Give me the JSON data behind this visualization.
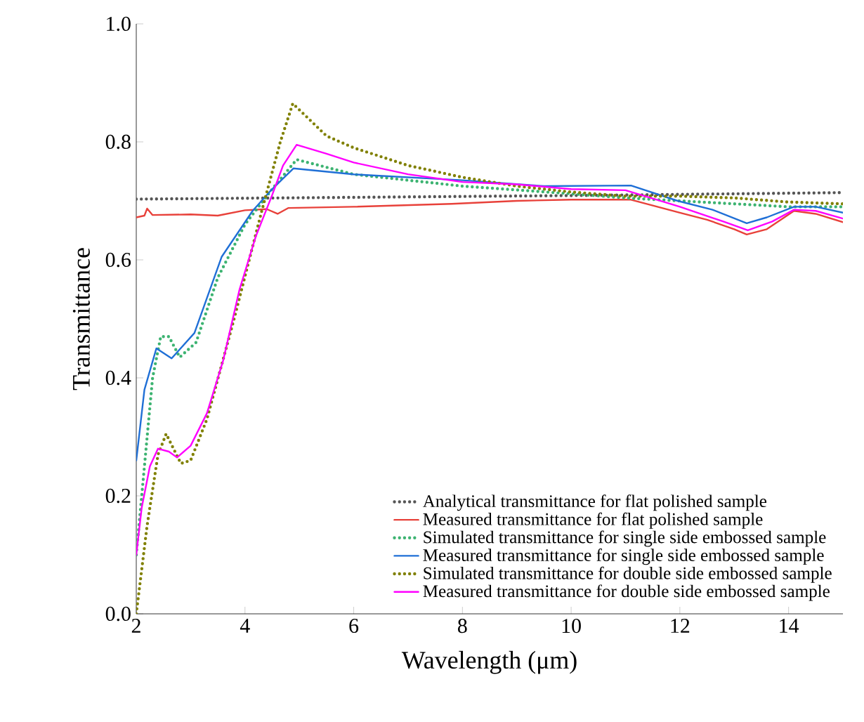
{
  "chart_data": {
    "type": "line",
    "xlabel": "Wavelength (μm)",
    "ylabel": "Transmittance",
    "xlim": [
      2,
      15
    ],
    "ylim": [
      0,
      1
    ],
    "xticks": [
      2,
      4,
      6,
      8,
      10,
      12,
      14
    ],
    "yticks": [
      {
        "value": 0,
        "label": "0.0"
      },
      {
        "value": 0.2,
        "label": "0.2"
      },
      {
        "value": 0.4,
        "label": "0.4"
      },
      {
        "value": 0.6,
        "label": "0.6"
      },
      {
        "value": 0.8,
        "label": "0.8"
      },
      {
        "value": 1,
        "label": "1.0"
      }
    ],
    "legend": "bottom right",
    "grid": false,
    "marker": "none",
    "series": [
      {
        "name": "Analytical transmittance for flat polished sample",
        "color": "#555555",
        "line_style": "dotted",
        "x": [
          2,
          6,
          10,
          15
        ],
        "values": [
          0.703,
          0.706,
          0.709,
          0.714
        ]
      },
      {
        "name": "Measured transmittance for flat polished sample",
        "color": "#e8413a",
        "line_style": "solid",
        "x": [
          2,
          2.15,
          2.2,
          2.3,
          3,
          3.5,
          4,
          4.4,
          4.6,
          4.8,
          6,
          7.8,
          9,
          10,
          11.1,
          12,
          12.5,
          13,
          13.23,
          13.6,
          14.1,
          14.5,
          15
        ],
        "values": [
          0.672,
          0.675,
          0.687,
          0.676,
          0.677,
          0.675,
          0.684,
          0.686,
          0.678,
          0.688,
          0.69,
          0.695,
          0.7,
          0.702,
          0.702,
          0.68,
          0.668,
          0.652,
          0.643,
          0.652,
          0.683,
          0.678,
          0.664
        ]
      },
      {
        "name": "Simulated transmittance for single side embossed sample",
        "color": "#3cb371",
        "line_style": "dotted",
        "x": [
          2,
          2.15,
          2.3,
          2.45,
          2.6,
          2.8,
          3.1,
          3.5,
          4,
          4.5,
          4.95,
          6,
          8,
          10,
          11,
          12,
          13,
          14,
          15
        ],
        "values": [
          0.1,
          0.25,
          0.4,
          0.47,
          0.47,
          0.435,
          0.46,
          0.57,
          0.66,
          0.72,
          0.77,
          0.745,
          0.725,
          0.712,
          0.705,
          0.7,
          0.695,
          0.69,
          0.69
        ]
      },
      {
        "name": "Measured transmittance for single side embossed sample",
        "color": "#1f6fd6",
        "line_style": "solid",
        "x": [
          2,
          2.15,
          2.37,
          2.65,
          3.07,
          3.57,
          4.14,
          4.49,
          4.89,
          6,
          8,
          9.5,
          11.1,
          11.96,
          12.6,
          13.23,
          13.6,
          14.1,
          14.5,
          15
        ],
        "values": [
          0.26,
          0.38,
          0.45,
          0.433,
          0.476,
          0.605,
          0.683,
          0.719,
          0.755,
          0.745,
          0.735,
          0.725,
          0.726,
          0.7,
          0.685,
          0.662,
          0.672,
          0.69,
          0.69,
          0.68
        ]
      },
      {
        "name": "Simulated transmittance for double side embossed sample",
        "color": "#808000",
        "line_style": "dotted",
        "x": [
          2,
          2.2,
          2.4,
          2.55,
          2.82,
          3,
          3.3,
          3.8,
          4.3,
          4.65,
          4.88,
          5.5,
          6,
          7,
          8,
          9,
          10,
          11,
          12,
          13,
          14,
          15
        ],
        "values": [
          0.0,
          0.15,
          0.27,
          0.305,
          0.255,
          0.26,
          0.33,
          0.5,
          0.68,
          0.8,
          0.865,
          0.81,
          0.79,
          0.76,
          0.74,
          0.725,
          0.715,
          0.708,
          0.708,
          0.705,
          0.698,
          0.695
        ]
      },
      {
        "name": "Measured transmittance for double side embossed sample",
        "color": "#ff00ff",
        "line_style": "solid",
        "x": [
          2,
          2.1,
          2.25,
          2.4,
          2.6,
          2.75,
          3,
          3.3,
          3.6,
          3.9,
          4.2,
          4.5,
          4.7,
          4.95,
          5.5,
          6,
          7,
          8,
          9,
          10,
          11,
          12,
          12.8,
          13.25,
          13.7,
          14.1,
          14.5,
          15
        ],
        "values": [
          0.1,
          0.18,
          0.25,
          0.28,
          0.275,
          0.265,
          0.285,
          0.34,
          0.43,
          0.55,
          0.64,
          0.71,
          0.76,
          0.795,
          0.78,
          0.765,
          0.745,
          0.732,
          0.728,
          0.72,
          0.718,
          0.69,
          0.665,
          0.65,
          0.665,
          0.685,
          0.683,
          0.67
        ]
      }
    ]
  }
}
